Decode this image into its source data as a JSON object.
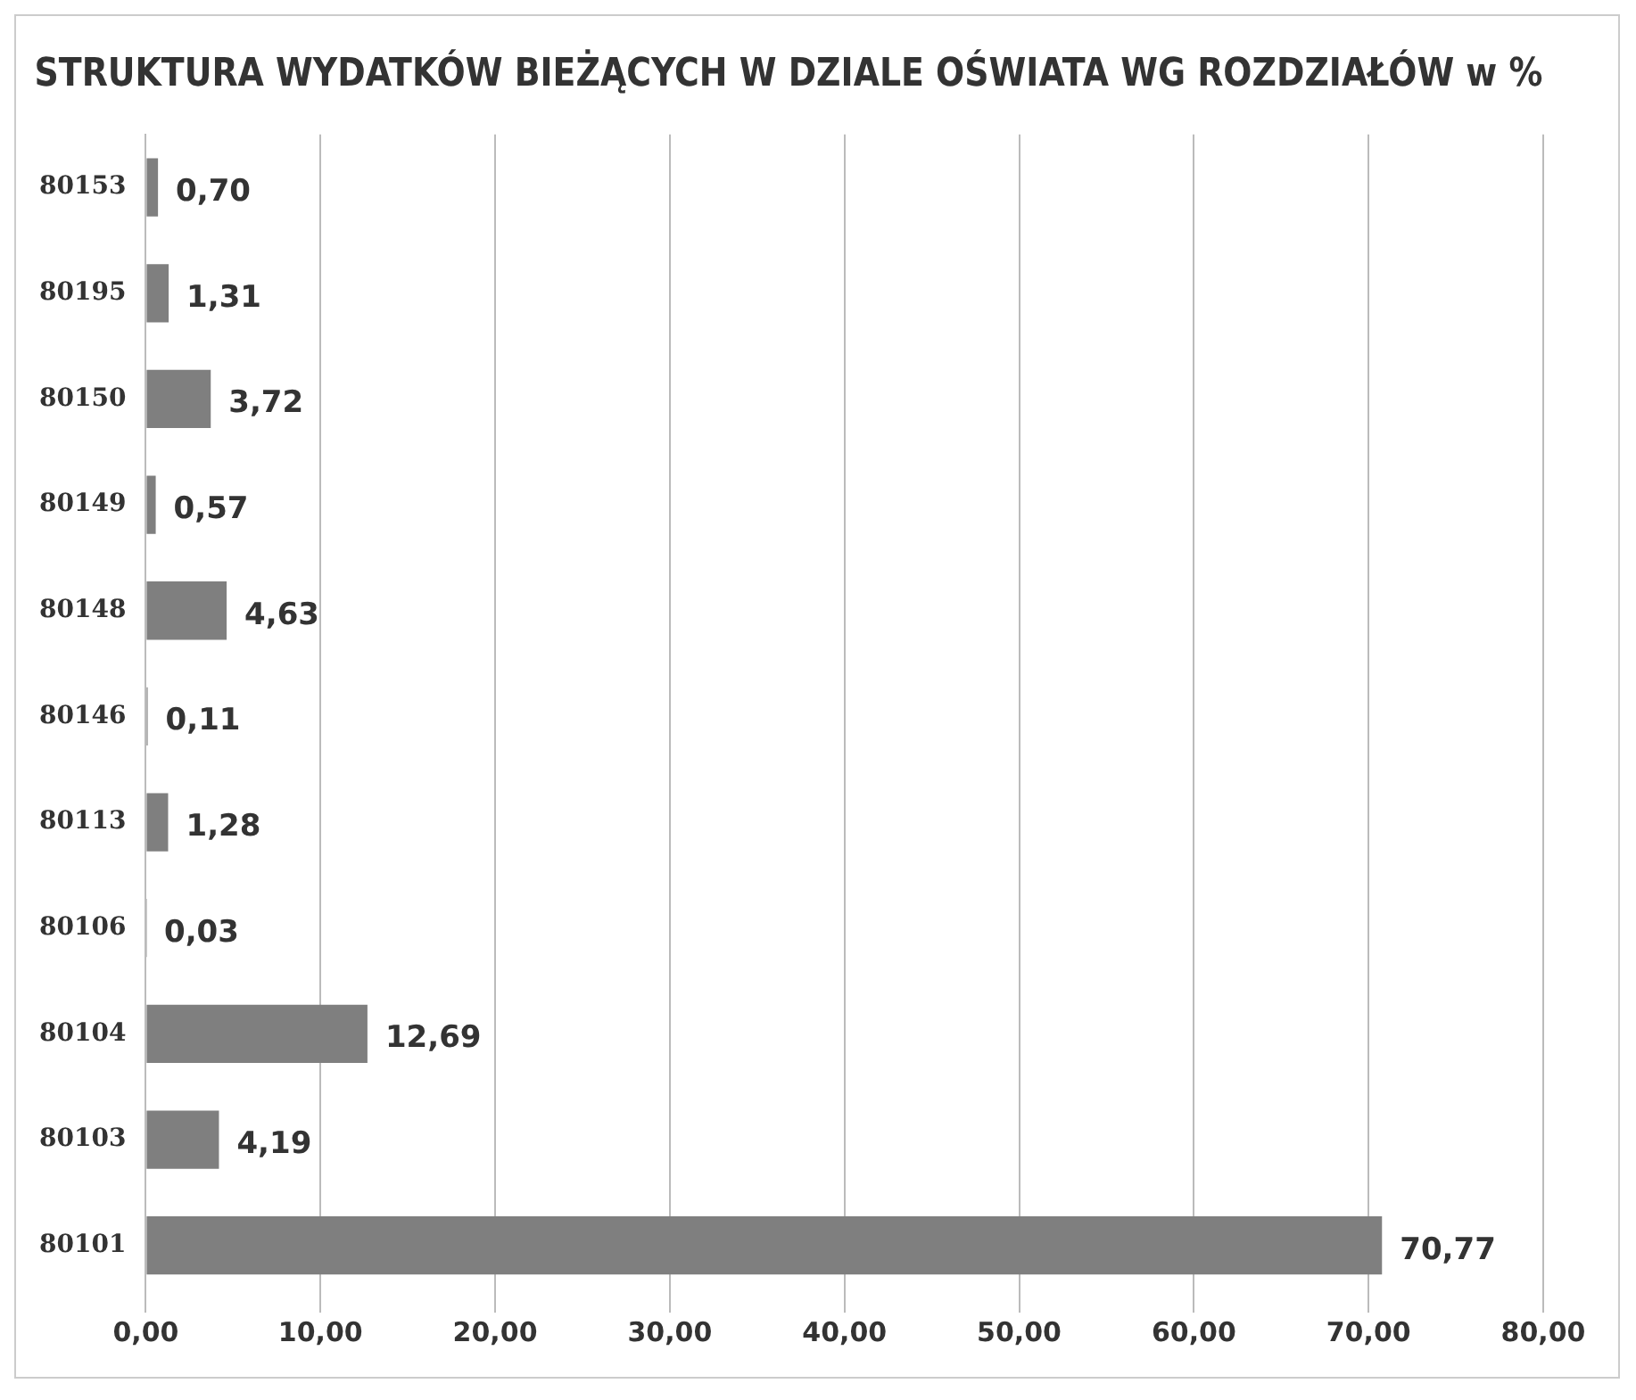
{
  "chart_data": {
    "type": "bar",
    "orientation": "horizontal",
    "title": "STRUKTURA WYDATKÓW BIEŻĄCYCH W DZIALE OŚWIATA WG ROZDZIAŁÓW w %",
    "categories": [
      "80153",
      "80195",
      "80150",
      "80149",
      "80148",
      "80146",
      "80113",
      "80106",
      "80104",
      "80103",
      "80101"
    ],
    "values": [
      0.7,
      1.31,
      3.72,
      0.57,
      4.63,
      0.11,
      1.28,
      0.03,
      12.69,
      4.19,
      70.77
    ],
    "value_labels": [
      "0,70",
      "1,31",
      "3,72",
      "0,57",
      "4,63",
      "0,11",
      "1,28",
      "0,03",
      "12,69",
      "4,19",
      "70,77"
    ],
    "color": "#7f7f7f",
    "xlim": [
      0,
      80
    ],
    "xticks": [
      {
        "value": 0,
        "label": "0,00"
      },
      {
        "value": 10,
        "label": "10,00"
      },
      {
        "value": 20,
        "label": "20,00"
      },
      {
        "value": 30,
        "label": "30,00"
      },
      {
        "value": 40,
        "label": "40,00"
      },
      {
        "value": 50,
        "label": "50,00"
      },
      {
        "value": 60,
        "label": "60,00"
      },
      {
        "value": 70,
        "label": "70,00"
      },
      {
        "value": 80,
        "label": "80,00"
      }
    ],
    "grid": "x",
    "legend": false
  }
}
